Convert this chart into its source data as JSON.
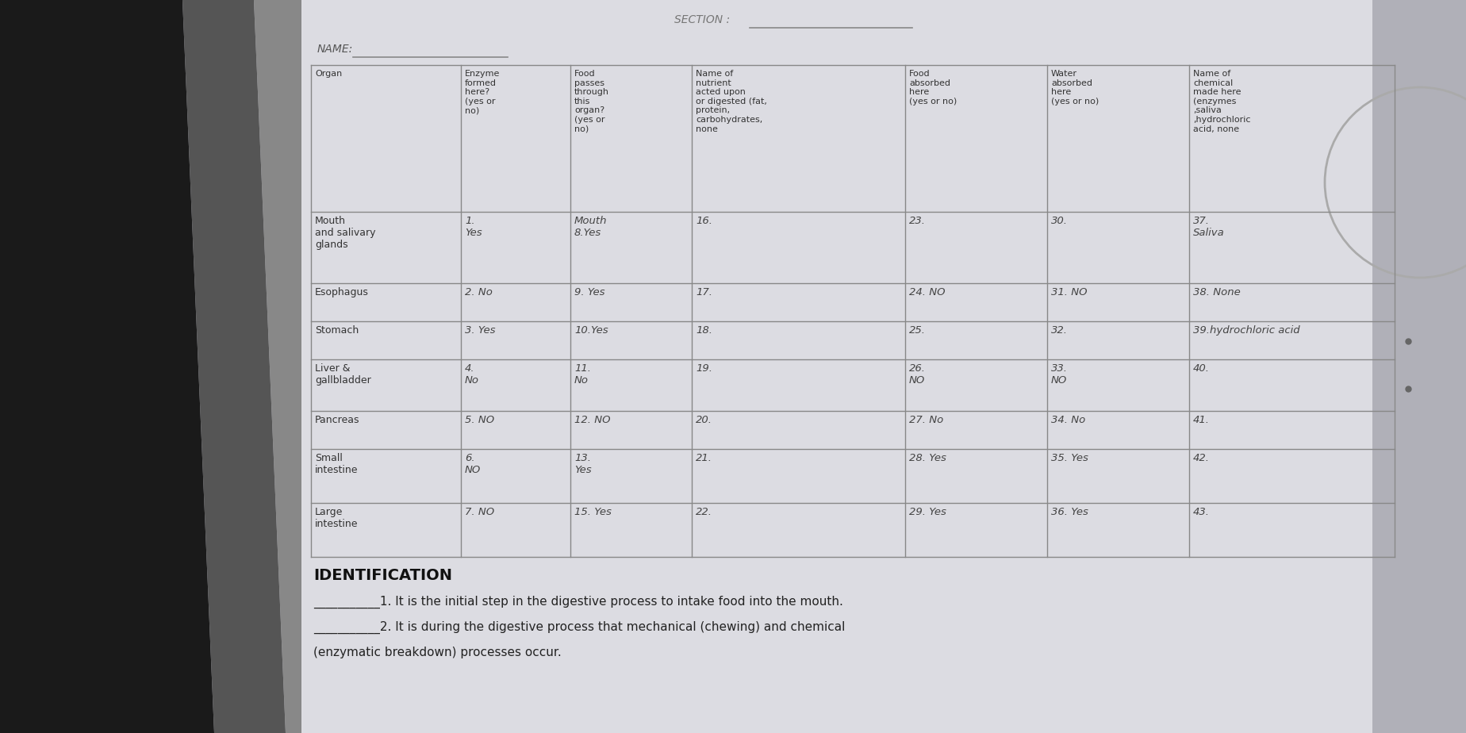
{
  "bg_left_color": "#2a2a2a",
  "bg_mid_color": "#b0b0b8",
  "paper_color": "#dcdce2",
  "col_headers": [
    "Organ",
    "Enzyme\nformed\nhere?\n(yes or\nno)",
    "Food\npasses\nthrough\nthis\norgan?\n(yes or\nno)",
    "Name of\nnutrient\nacted upon\nor digested (fat,\nprotein,\ncarbohydrates,\nnone",
    "Food\nabsorbed\nhere\n(yes or no)",
    "Water\nabsorbed\nhere\n(yes or no)",
    "Name of\nchemical\nmade here\n(enzymes\n,saliva\n,hydrochloric\nacid, none"
  ],
  "rows": [
    [
      "Mouth\nand salivary\nglands",
      "1.\nYes",
      "Mouth\n8.Yes",
      "16.",
      "23.",
      "30.",
      "37.\nSaliva"
    ],
    [
      "Esophagus",
      "2. No",
      "9. Yes",
      "17.",
      "24. NO",
      "31. NO",
      "38. None"
    ],
    [
      "Stomach",
      "3. Yes",
      "10.Yes",
      "18.",
      "25.",
      "32.",
      "39.hydrochloric acid"
    ],
    [
      "Liver &\ngallbladder",
      "4.\nNo",
      "11.\nNo",
      "19.",
      "26.\nNO",
      "33.\nNO",
      "40."
    ],
    [
      "Pancreas",
      "5. NO",
      "12. NO",
      "20.",
      "27. No",
      "34. No",
      "41."
    ],
    [
      "Small\nintestine",
      "6.\nNO",
      "13.\nYes",
      "21.",
      "28. Yes",
      "35. Yes",
      "42."
    ],
    [
      "Large\nintestine",
      "7. NO",
      "15. Yes",
      "22.",
      "29. Yes",
      "36. Yes",
      "43."
    ]
  ],
  "identification_title": "IDENTIFICATION",
  "id_lines": [
    "___________1. It is the initial step in the digestive process to intake food into the mouth.",
    "___________2. It is during the digestive process that mechanical (chewing) and chemical",
    "(enzymatic breakdown) processes occur."
  ],
  "name_label": "NAME:",
  "section_label": "SECTION :"
}
